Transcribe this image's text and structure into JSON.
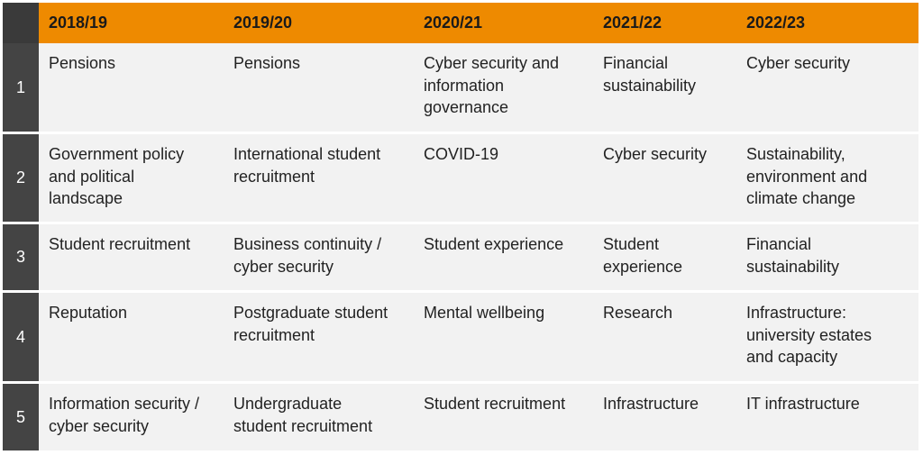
{
  "headers": [
    "2018/19",
    "2019/20",
    "2020/21",
    "2021/22",
    "2022/23"
  ],
  "rows": [
    {
      "rank": "1",
      "cells": [
        "Pensions",
        "Pensions",
        "Cyber security and\ninformation\ngovernance",
        "Financial\nsustainability",
        "Cyber security"
      ]
    },
    {
      "rank": "2",
      "cells": [
        "Government policy\nand political\nlandscape",
        "International student\nrecruitment",
        "COVID-19",
        "Cyber security",
        "Sustainability,\nenvironment and\nclimate change"
      ]
    },
    {
      "rank": "3",
      "cells": [
        "Student recruitment",
        "Business continuity /\ncyber security",
        "Student experience",
        "Student\nexperience",
        "Financial\nsustainability"
      ]
    },
    {
      "rank": "4",
      "cells": [
        "Reputation",
        "Postgraduate student\nrecruitment",
        "Mental wellbeing",
        "Research",
        "Infrastructure:\nuniversity estates\nand capacity"
      ]
    },
    {
      "rank": "5",
      "cells": [
        "Information security /\ncyber security",
        "Undergraduate\nstudent recruitment",
        "Student recruitment",
        "Infrastructure",
        "IT infrastructure"
      ]
    }
  ],
  "colors": {
    "header_bg": "#ee8a00",
    "rank_bg": "#444444",
    "row_bg": "#f2f2f2",
    "text": "#222222"
  }
}
